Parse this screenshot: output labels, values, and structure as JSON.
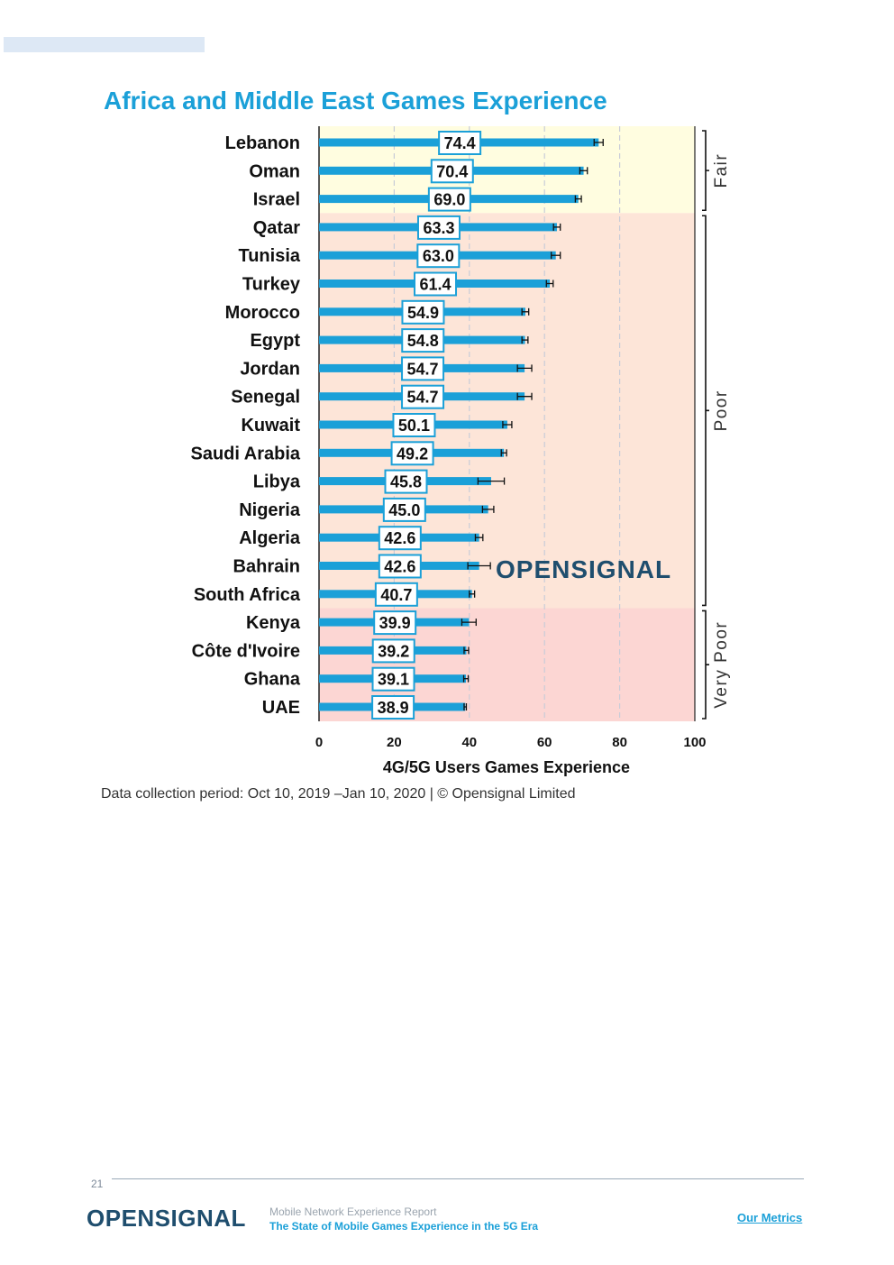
{
  "header": {
    "title": "Africa and Middle East Games Experience"
  },
  "chart_data": {
    "type": "bar",
    "orientation": "horizontal",
    "title": "Africa and Middle East Games Experience",
    "xlabel": "4G/5G Users Games Experience",
    "ylabel": "",
    "xlim": [
      0,
      100
    ],
    "xticks": [
      0,
      20,
      40,
      60,
      80,
      100
    ],
    "categories": [
      "Lebanon",
      "Oman",
      "Israel",
      "Qatar",
      "Tunisia",
      "Turkey",
      "Morocco",
      "Egypt",
      "Jordan",
      "Senegal",
      "Kuwait",
      "Saudi Arabia",
      "Libya",
      "Nigeria",
      "Algeria",
      "Bahrain",
      "South Africa",
      "Kenya",
      "Côte d'Ivoire",
      "Ghana",
      "UAE"
    ],
    "values": [
      74.4,
      70.4,
      69.0,
      63.3,
      63.0,
      61.4,
      54.9,
      54.8,
      54.7,
      54.7,
      50.1,
      49.2,
      45.8,
      45.0,
      42.6,
      42.6,
      40.7,
      39.9,
      39.2,
      39.1,
      38.9
    ],
    "value_labels": [
      "74.4",
      "70.4",
      "69.0",
      "63.3",
      "63.0",
      "61.4",
      "54.9",
      "54.8",
      "54.7",
      "54.7",
      "50.1",
      "49.2",
      "45.8",
      "45.0",
      "42.6",
      "42.6",
      "40.7",
      "39.9",
      "39.2",
      "39.1",
      "38.9"
    ],
    "error_low": [
      73.2,
      69.4,
      68.2,
      62.4,
      61.8,
      60.5,
      54.0,
      54.0,
      52.8,
      52.8,
      48.9,
      48.5,
      42.3,
      43.5,
      41.6,
      39.6,
      40.0,
      38.0,
      38.6,
      38.5,
      38.6
    ],
    "error_high": [
      75.6,
      71.4,
      69.8,
      64.2,
      64.2,
      62.3,
      55.8,
      55.6,
      56.6,
      56.6,
      51.3,
      49.9,
      49.3,
      46.5,
      43.6,
      45.6,
      41.4,
      41.8,
      39.8,
      39.7,
      39.2
    ],
    "bands": [
      {
        "label": "Fair",
        "from_category": "Lebanon",
        "to_category": "Israel",
        "color": "#fffde0"
      },
      {
        "label": "Poor",
        "from_category": "Qatar",
        "to_category": "South Africa",
        "color": "#fde5d8"
      },
      {
        "label": "Very Poor",
        "from_category": "Kenya",
        "to_category": "UAE",
        "color": "#fcd6d3"
      }
    ],
    "bar_color": "#1ba0d8",
    "label_border_color": "#1ba0d8",
    "watermark": "OPENSIGNAL"
  },
  "caption": "Data collection period: Oct 10, 2019 –Jan 10, 2020 | © Opensignal Limited",
  "footer": {
    "page_number": "21",
    "logo": "OPENSIGNAL",
    "report_line1": "Mobile Network Experience Report",
    "report_line2": "The State of Mobile Games Experience in the 5G Era",
    "link": "Our Metrics"
  }
}
